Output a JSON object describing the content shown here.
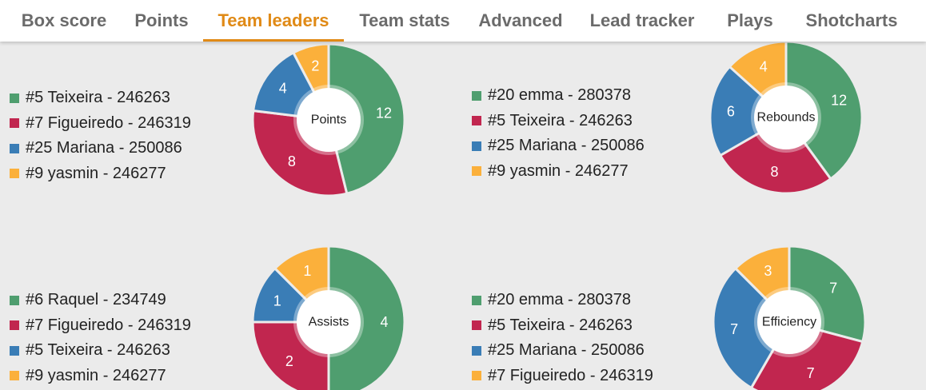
{
  "tabs": [
    {
      "label": "Box score",
      "active": false
    },
    {
      "label": "Points",
      "active": false
    },
    {
      "label": "Team leaders",
      "active": true
    },
    {
      "label": "Team stats",
      "active": false
    },
    {
      "label": "Advanced",
      "active": false
    },
    {
      "label": "Lead tracker",
      "active": false
    },
    {
      "label": "Plays",
      "active": false
    },
    {
      "label": "Shotcharts",
      "active": false
    }
  ],
  "colors": {
    "green": "#4f9e6f",
    "red": "#c1264f",
    "blue": "#3a7db6",
    "orange": "#fbb03b",
    "active_tab": "#e08a16"
  },
  "charts": [
    {
      "center_label": "Points",
      "legend": [
        "#5 Teixeira - 246263",
        "#7 Figueiredo - 246319",
        "#25 Mariana - 250086",
        "#9 yasmin - 246277"
      ],
      "values": [
        12,
        8,
        4,
        2
      ]
    },
    {
      "center_label": "Rebounds",
      "legend": [
        "#20 emma - 280378",
        "#5 Teixeira - 246263",
        "#25 Mariana - 250086",
        "#9 yasmin - 246277"
      ],
      "values": [
        12,
        8,
        6,
        4
      ]
    },
    {
      "center_label": "Assists",
      "legend": [
        "#6 Raquel - 234749",
        "#7 Figueiredo - 246319",
        "#5 Teixeira - 246263",
        "#9 yasmin - 246277"
      ],
      "values": [
        4,
        2,
        1,
        1
      ]
    },
    {
      "center_label": "Efficiency",
      "legend": [
        "#20 emma - 280378",
        "#5 Teixeira - 246263",
        "#25 Mariana - 250086",
        "#7 Figueiredo - 246319"
      ],
      "values": [
        7,
        7,
        7,
        3
      ]
    }
  ]
}
